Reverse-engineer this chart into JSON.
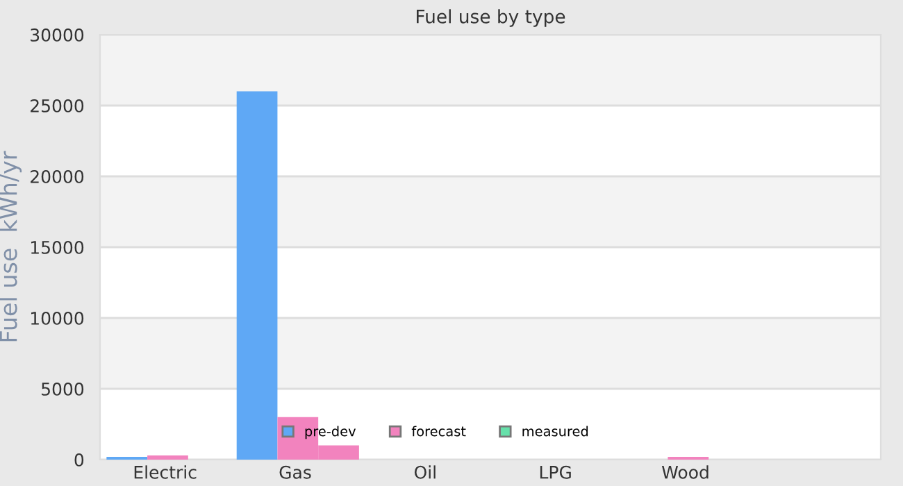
{
  "chart_data": {
    "type": "bar",
    "title": "Fuel use by type",
    "ylabel": "Fuel use  kWh/yr",
    "categories": [
      "Electric",
      "Gas",
      "Oil",
      "LPG",
      "Wood",
      null
    ],
    "series": [
      {
        "name": "pre-dev",
        "color": "#5fa8f5",
        "values": [
          200,
          26000,
          null,
          null,
          null,
          null
        ]
      },
      {
        "name": "forecast",
        "color": "#f283be",
        "values": [
          300,
          3000,
          null,
          null,
          200,
          null
        ]
      },
      {
        "name": "measured",
        "color": "#66e0aa",
        "values": [
          null,
          null,
          null,
          null,
          null,
          null
        ]
      },
      {
        "color": "#f283be",
        "values": [
          null,
          1000,
          null,
          null,
          null,
          null
        ]
      }
    ],
    "ylim": [
      0,
      30000
    ],
    "yticks": [
      0,
      5000,
      10000,
      15000,
      20000,
      25000,
      30000
    ],
    "grid": "y",
    "legend": "bottom"
  }
}
